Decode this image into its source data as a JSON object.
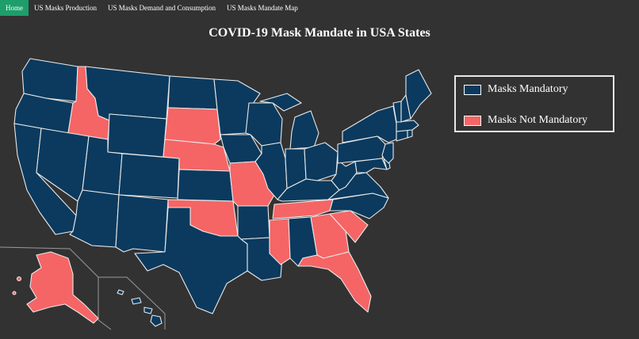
{
  "nav": {
    "items": [
      {
        "label": "Home",
        "active": true
      },
      {
        "label": "US Masks Production",
        "active": false
      },
      {
        "label": "US Masks Demand and Consumption",
        "active": false
      },
      {
        "label": "US Masks Mandate Map",
        "active": false
      }
    ]
  },
  "map": {
    "title": "COVID-19 Mask Mandate in USA States",
    "colors": {
      "mandatory": "#0b3a5e",
      "not_mandatory": "#f56565",
      "background": "#333232"
    },
    "legend": {
      "mandatory_label": "Masks Mandatory",
      "not_mandatory_label": "Masks Not Mandatory"
    },
    "not_mandatory_states": [
      "ID",
      "SD",
      "NE",
      "MO",
      "OK",
      "TN",
      "MS",
      "GA",
      "SC",
      "FL",
      "AK"
    ]
  }
}
